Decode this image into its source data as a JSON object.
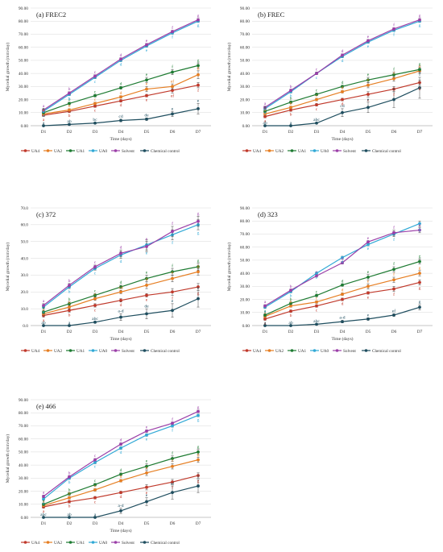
{
  "figure": {
    "xlabel": "Time (days)",
    "ylabel": "Mycelial growth  (mm/day)",
    "categories": [
      "D1",
      "D2",
      "D3",
      "D4",
      "D5",
      "D6",
      "D7"
    ],
    "series_names": [
      "UA4",
      "UA2",
      "UA1",
      "UA0",
      "Solvent",
      "Chemical control"
    ],
    "series_colors": {
      "UA4": "#c0392b",
      "UA2": "#e67e22",
      "UA1": "#1e7b32",
      "UA0": "#31a9d6",
      "Solvent": "#9b3fa8",
      "Chemical control": "#1f4e5f"
    }
  },
  "chart_data": [
    {
      "type": "line",
      "title": "(a) FREC2",
      "xlabel": "Time (days)",
      "ylabel": "Mycelial growth  (mm/day)",
      "categories": [
        "D1",
        "D2",
        "D3",
        "D4",
        "D5",
        "D6",
        "D7"
      ],
      "ylim": [
        0,
        90
      ],
      "yticks": [
        "0.00",
        "10.00",
        "20.00",
        "30.00",
        "40.00",
        "50.00",
        "60.00",
        "70.00",
        "80.00",
        "90.00"
      ],
      "grid": true,
      "legend": "bottom",
      "series": [
        {
          "name": "UA4",
          "values": [
            8,
            11,
            15,
            19,
            23,
            27,
            31
          ],
          "errors": [
            1,
            1,
            1,
            1,
            1,
            2,
            2
          ]
        },
        {
          "name": "UA2",
          "values": [
            9,
            12,
            17,
            22,
            28,
            30,
            39
          ],
          "errors": [
            1,
            1,
            1,
            1,
            2,
            2,
            3
          ]
        },
        {
          "name": "UA1",
          "values": [
            10,
            17,
            23,
            29,
            35,
            41,
            46
          ],
          "errors": [
            1,
            1,
            1,
            1,
            2,
            2,
            2
          ]
        },
        {
          "name": "UA0",
          "values": [
            11,
            24,
            37,
            50,
            61,
            71,
            80
          ],
          "errors": [
            1,
            1,
            1,
            1,
            1,
            1,
            1
          ]
        },
        {
          "name": "Solvent",
          "values": [
            12,
            25,
            38,
            51,
            62,
            72,
            81
          ],
          "errors": [
            1,
            1,
            1,
            1,
            1,
            1,
            1
          ]
        },
        {
          "name": "Chemical control",
          "values": [
            0,
            1,
            2,
            4,
            5,
            9,
            13
          ],
          "errors": [
            0,
            0.5,
            0.5,
            1,
            1,
            2,
            4
          ]
        }
      ],
      "labels": [
        {
          "series": "UA4",
          "texts": [
            "a",
            "b",
            "c",
            "d",
            "e",
            "ef",
            "f"
          ]
        },
        {
          "series": "UA2",
          "texts": [
            "a",
            "b",
            "c",
            "d",
            "e",
            "ef",
            "g"
          ]
        },
        {
          "series": "UA1",
          "texts": [
            "a",
            "b",
            "c",
            "d",
            "e",
            "f",
            "g"
          ]
        },
        {
          "series": "UA0",
          "texts": [
            "a",
            "b",
            "c",
            "d",
            "e",
            "f",
            "g"
          ]
        },
        {
          "series": "Solvent",
          "texts": [
            "a",
            "b",
            "c",
            "d",
            "e",
            "f",
            "g"
          ]
        },
        {
          "series": "Chemical control",
          "texts": [
            "a",
            "ab",
            "bc",
            "cd",
            "de",
            "e",
            "e"
          ]
        }
      ]
    },
    {
      "type": "line",
      "title": "(b) FREC",
      "xlabel": "Time (days)",
      "ylabel": "Mycelial growth  (mm/day)",
      "categories": [
        "D1",
        "D2",
        "D3",
        "D4",
        "D5",
        "D6",
        "D7"
      ],
      "ylim": [
        0,
        90
      ],
      "yticks": [
        "0.00",
        "10.00",
        "20.00",
        "30.00",
        "40.00",
        "50.00",
        "60.00",
        "70.00",
        "80.00",
        "90.00"
      ],
      "grid": true,
      "legend": "bottom",
      "series": [
        {
          "name": "UA4",
          "values": [
            7,
            12,
            16,
            20,
            24,
            28,
            33
          ],
          "errors": [
            1,
            1,
            1,
            1,
            2,
            2,
            2
          ]
        },
        {
          "name": "UA2",
          "values": [
            9,
            14,
            20,
            26,
            31,
            36,
            42
          ],
          "errors": [
            1,
            1,
            1,
            1,
            2,
            2,
            2
          ]
        },
        {
          "name": "UA1",
          "values": [
            11,
            18,
            24,
            30,
            35,
            39,
            43
          ],
          "errors": [
            1,
            1,
            1,
            1,
            2,
            2,
            2
          ]
        },
        {
          "name": "UA0",
          "values": [
            13,
            26,
            40,
            53,
            64,
            73,
            80
          ],
          "errors": [
            1,
            1,
            1,
            1,
            1,
            1,
            1
          ]
        },
        {
          "name": "Solvent",
          "values": [
            14,
            27,
            40,
            54,
            65,
            74,
            81
          ],
          "errors": [
            1,
            1,
            1,
            1,
            1,
            1,
            1
          ]
        },
        {
          "name": "Chemical control",
          "values": [
            0,
            0,
            2,
            10,
            14,
            20,
            29
          ],
          "errors": [
            0,
            0,
            0.5,
            3,
            4,
            6,
            8
          ]
        }
      ],
      "labels": [
        {
          "series": "UA4",
          "texts": [
            "a",
            "b",
            "c",
            "d",
            "e",
            "f",
            "g"
          ]
        },
        {
          "series": "UA2",
          "texts": [
            "a",
            "b",
            "c",
            "d",
            "e",
            "f",
            "g"
          ]
        },
        {
          "series": "UA1",
          "texts": [
            "a",
            "b",
            "c",
            "d",
            "e",
            "f",
            "g"
          ]
        },
        {
          "series": "UA0",
          "texts": [
            "a",
            "b",
            "c",
            "d",
            "e",
            "f",
            "g"
          ]
        },
        {
          "series": "Solvent",
          "texts": [
            "a",
            "b",
            "c",
            "d",
            "e",
            "f",
            "g"
          ]
        },
        {
          "series": "Chemical control",
          "texts": [
            "ab",
            "a",
            "abc",
            "cd",
            "e",
            "e",
            "f"
          ]
        }
      ]
    },
    {
      "type": "line",
      "title": "(c) 372",
      "xlabel": "Time (days)",
      "ylabel": "Mycelial growth  (mm/day)",
      "categories": [
        "D1",
        "D2",
        "D3",
        "D4",
        "D5",
        "D6",
        "D7"
      ],
      "ylim": [
        0,
        70
      ],
      "yticks": [
        "0.0",
        "10.0",
        "20.0",
        "30.0",
        "40.0",
        "50.0",
        "60.0",
        "70.0"
      ],
      "grid": true,
      "legend": "bottom",
      "series": [
        {
          "name": "UA4",
          "values": [
            6,
            9,
            12,
            15,
            18,
            20,
            23
          ],
          "errors": [
            1,
            1,
            1,
            1,
            1,
            2,
            2
          ]
        },
        {
          "name": "UA2",
          "values": [
            7,
            11,
            16,
            20,
            24,
            28,
            32
          ],
          "errors": [
            1,
            1,
            1,
            1,
            2,
            2,
            2
          ]
        },
        {
          "name": "UA1",
          "values": [
            8,
            13,
            18,
            23,
            28,
            32,
            35
          ],
          "errors": [
            1,
            1,
            1,
            1,
            2,
            2,
            2
          ]
        },
        {
          "name": "UA0",
          "values": [
            11,
            23,
            34,
            42,
            48,
            54,
            60
          ],
          "errors": [
            1,
            1,
            1,
            2,
            3,
            3,
            3
          ]
        },
        {
          "name": "Solvent",
          "values": [
            12,
            24,
            35,
            43,
            47,
            56,
            62
          ],
          "errors": [
            1,
            1,
            1,
            2,
            3,
            3,
            3
          ]
        },
        {
          "name": "Chemical control",
          "values": [
            0,
            0,
            2,
            5,
            7,
            9,
            16
          ],
          "errors": [
            0,
            0,
            0.5,
            2,
            3,
            4,
            5
          ]
        }
      ],
      "labels": [
        {
          "series": "UA4",
          "texts": [
            "a",
            "b",
            "c",
            "d",
            "e",
            "f",
            "g"
          ]
        },
        {
          "series": "UA2",
          "texts": [
            "a",
            "b",
            "c",
            "cd",
            "d",
            "e",
            "g"
          ]
        },
        {
          "series": "UA1",
          "texts": [
            "a",
            "b",
            "c",
            "d",
            "e",
            "f",
            "g"
          ]
        },
        {
          "series": "UA0",
          "texts": [
            "a",
            "b",
            "c",
            "d",
            "e",
            "f",
            "g"
          ]
        },
        {
          "series": "Solvent",
          "texts": [
            "a",
            "b",
            "c",
            "d",
            "e",
            "f",
            "g"
          ]
        },
        {
          "series": "Chemical control",
          "texts": [
            "ab",
            "a",
            "abc",
            "a-d",
            "de",
            "e",
            "e"
          ]
        }
      ]
    },
    {
      "type": "line",
      "title": "(d) 323",
      "xlabel": "Time (days)",
      "ylabel": "Mycelial growth  (mm/day)",
      "categories": [
        "D1",
        "D2",
        "D3",
        "D4",
        "D5",
        "D6",
        "D7"
      ],
      "ylim": [
        0,
        90
      ],
      "yticks": [
        "0.00",
        "10.00",
        "20.00",
        "30.00",
        "40.00",
        "50.00",
        "60.00",
        "70.00",
        "80.00",
        "90.00"
      ],
      "grid": true,
      "legend": "bottom",
      "series": [
        {
          "name": "UA4",
          "values": [
            5,
            11,
            15,
            20,
            25,
            28,
            33
          ],
          "errors": [
            1,
            1,
            1,
            1,
            1,
            2,
            2
          ]
        },
        {
          "name": "UA2",
          "values": [
            7,
            15,
            18,
            24,
            30,
            35,
            40
          ],
          "errors": [
            1,
            1,
            1,
            1,
            2,
            2,
            2
          ]
        },
        {
          "name": "UA1",
          "values": [
            8,
            17,
            23,
            31,
            37,
            43,
            49
          ],
          "errors": [
            1,
            1,
            1,
            1,
            2,
            2,
            2
          ]
        },
        {
          "name": "UA0",
          "values": [
            14,
            26,
            40,
            52,
            62,
            70,
            78
          ],
          "errors": [
            1,
            1,
            1,
            1,
            1,
            2,
            2
          ]
        },
        {
          "name": "Solvent",
          "values": [
            15,
            27,
            38,
            48,
            64,
            71,
            73
          ],
          "errors": [
            1,
            1,
            1,
            1,
            1,
            2,
            2
          ]
        },
        {
          "name": "Chemical control",
          "values": [
            0,
            0,
            1,
            3,
            5,
            8,
            14
          ],
          "errors": [
            0,
            0,
            0.5,
            1,
            1,
            1,
            2
          ]
        }
      ],
      "labels": [
        {
          "series": "UA4",
          "texts": [
            "a",
            "b",
            "c",
            "d",
            "e",
            "f",
            "g"
          ]
        },
        {
          "series": "UA2",
          "texts": [
            "a",
            "b",
            "c",
            "d",
            "e",
            "f",
            "g"
          ]
        },
        {
          "series": "UA1",
          "texts": [
            "a",
            "b",
            "c",
            "d",
            "e",
            "f",
            "g"
          ]
        },
        {
          "series": "UA0",
          "texts": [
            "a",
            "b",
            "c",
            "d",
            "e",
            "f",
            "g"
          ]
        },
        {
          "series": "Solvent",
          "texts": [
            "a",
            "b",
            "c",
            "d",
            "e",
            "f",
            "g"
          ]
        },
        {
          "series": "Chemical control",
          "texts": [
            "a",
            "ab",
            "abc",
            "a-d",
            "e",
            "ef",
            "g"
          ]
        }
      ]
    },
    {
      "type": "line",
      "title": "(e) 466",
      "xlabel": "Time (days)",
      "ylabel": "Mycelial growth  (mm/day)",
      "categories": [
        "D1",
        "D2",
        "D3",
        "D4",
        "D5",
        "D6",
        "D7"
      ],
      "ylim": [
        0,
        90
      ],
      "yticks": [
        "0.00",
        "10.00",
        "20.00",
        "30.00",
        "40.00",
        "50.00",
        "60.00",
        "70.00",
        "80.00",
        "90.00"
      ],
      "grid": true,
      "legend": "bottom",
      "series": [
        {
          "name": "UA4",
          "values": [
            8,
            12,
            15,
            19,
            23,
            27,
            32
          ],
          "errors": [
            1,
            1,
            1,
            1,
            2,
            2,
            2
          ]
        },
        {
          "name": "UA2",
          "values": [
            9,
            15,
            21,
            28,
            34,
            39,
            44
          ],
          "errors": [
            1,
            1,
            1,
            1,
            2,
            2,
            2
          ]
        },
        {
          "name": "UA1",
          "values": [
            10,
            18,
            25,
            33,
            39,
            45,
            50
          ],
          "errors": [
            1,
            1,
            1,
            1,
            2,
            2,
            2
          ]
        },
        {
          "name": "UA0",
          "values": [
            14,
            30,
            42,
            53,
            63,
            70,
            78
          ],
          "errors": [
            1,
            1,
            1,
            1,
            1,
            1,
            1
          ]
        },
        {
          "name": "Solvent",
          "values": [
            16,
            31,
            44,
            56,
            66,
            72,
            81
          ],
          "errors": [
            1,
            1,
            1,
            1,
            1,
            1,
            1
          ]
        },
        {
          "name": "Chemical control",
          "values": [
            0,
            0,
            0,
            5,
            12,
            19,
            24
          ],
          "errors": [
            0,
            0,
            0,
            2,
            3,
            5,
            5
          ]
        }
      ],
      "labels": [
        {
          "series": "UA4",
          "texts": [
            "a",
            "b",
            "c",
            "d",
            "e",
            "f",
            "g"
          ]
        },
        {
          "series": "UA2",
          "texts": [
            "a",
            "b",
            "c",
            "d",
            "e",
            "f",
            "g"
          ]
        },
        {
          "series": "UA1",
          "texts": [
            "a",
            "b",
            "c",
            "d",
            "e",
            "f",
            "g"
          ]
        },
        {
          "series": "UA0",
          "texts": [
            "a",
            "b",
            "c",
            "d",
            "e",
            "f",
            "g"
          ]
        },
        {
          "series": "Solvent",
          "texts": [
            "a",
            "b",
            "c",
            "d",
            "e",
            "f",
            "g"
          ]
        },
        {
          "series": "Chemical control",
          "texts": [
            "abc",
            "ab",
            "a",
            "a-d",
            "e",
            "ef",
            "f"
          ]
        }
      ]
    }
  ]
}
